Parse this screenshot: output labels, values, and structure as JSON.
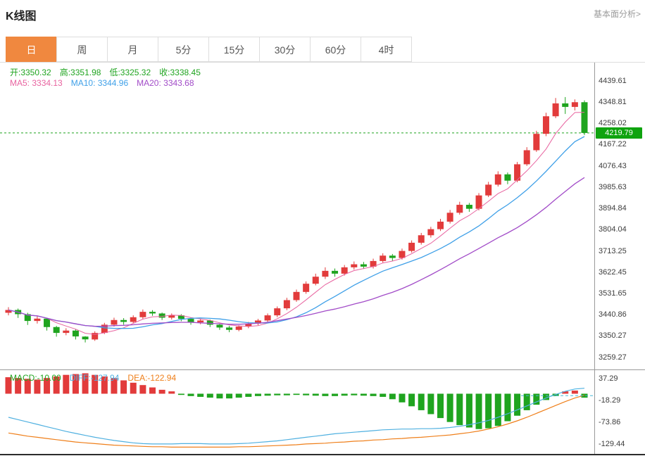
{
  "header": {
    "title": "K线图",
    "analysis_link": "基本面分析>"
  },
  "tabs": {
    "items": [
      "日",
      "周",
      "月",
      "5分",
      "15分",
      "30分",
      "60分",
      "4时"
    ],
    "active_index": 0,
    "active_color": "#f0883f"
  },
  "info": {
    "ohlc_color": "#1fa41f",
    "ohlc": [
      {
        "name": "open",
        "label": "开:3350.32"
      },
      {
        "name": "high",
        "label": "高:3351.98"
      },
      {
        "name": "low",
        "label": "低:3325.32"
      },
      {
        "name": "close",
        "label": "收:3338.45"
      }
    ],
    "ma": [
      {
        "name": "ma5",
        "label": "MA5: 3334.13",
        "color": "#e864a0"
      },
      {
        "name": "ma10",
        "label": "MA10: 3344.96",
        "color": "#3fa0e8"
      },
      {
        "name": "ma20",
        "label": "MA20: 3343.68",
        "color": "#a24cc8"
      }
    ],
    "macd": [
      {
        "name": "macd",
        "label": "MACD:-10.00",
        "color": "#1fa41f"
      },
      {
        "name": "diff",
        "label": "DIFF:-127.94",
        "color": "#4fb0e0"
      },
      {
        "name": "dea",
        "label": "DEA:-122.94",
        "color": "#ef7f1a"
      }
    ]
  },
  "price_tag": {
    "value": "4219.79",
    "bg": "#0fa30f"
  },
  "axes": {
    "main_ticks": [
      "4439.61",
      "4348.81",
      "4258.02",
      "4167.22",
      "4076.43",
      "3985.63",
      "3894.84",
      "3804.04",
      "3713.25",
      "3622.45",
      "3531.65",
      "3440.86",
      "3350.27",
      "3259.27"
    ],
    "macd_ticks": [
      "37.29",
      "-18.29",
      "-73.86",
      "-129.44"
    ]
  },
  "chart_data": {
    "type": "candlestick",
    "title": "K线图 (日)",
    "price_domain": [
      3210,
      4520
    ],
    "macd_domain": [
      -155,
      60
    ],
    "current_price": 4219.79,
    "ohlc_display": {
      "open": 3350.32,
      "high": 3351.98,
      "low": 3325.32,
      "close": 3338.45
    },
    "ma_display": {
      "ma5": 3334.13,
      "ma10": 3344.96,
      "ma20": 3343.68
    },
    "macd_display": {
      "macd": -10.0,
      "diff": -127.94,
      "dea": -122.94
    },
    "overlays": {
      "ma_windows": [
        5,
        10,
        20
      ]
    },
    "colors": {
      "up": "#e23b3b",
      "down": "#1fa41f",
      "ma5": "#e864a0",
      "ma10": "#3fa0e8",
      "ma20": "#a24cc8",
      "diff": "#4fb0e0",
      "dea": "#ef7f1a",
      "current_line": "#1fa41f",
      "macd_ref_line": "#49b8d8"
    },
    "candles": [
      [
        3452,
        3476,
        3441,
        3464
      ],
      [
        3464,
        3470,
        3430,
        3446
      ],
      [
        3446,
        3452,
        3400,
        3417
      ],
      [
        3417,
        3437,
        3406,
        3427
      ],
      [
        3427,
        3430,
        3376,
        3391
      ],
      [
        3391,
        3396,
        3350,
        3366
      ],
      [
        3366,
        3386,
        3356,
        3376
      ],
      [
        3376,
        3381,
        3338,
        3351
      ],
      [
        3350.32,
        3351.98,
        3325.32,
        3338.45
      ],
      [
        3338,
        3373,
        3332,
        3366
      ],
      [
        3366,
        3409,
        3361,
        3401
      ],
      [
        3401,
        3431,
        3393,
        3421
      ],
      [
        3421,
        3429,
        3401,
        3413
      ],
      [
        3413,
        3441,
        3406,
        3433
      ],
      [
        3433,
        3466,
        3426,
        3456
      ],
      [
        3456,
        3463,
        3439,
        3449
      ],
      [
        3449,
        3453,
        3421,
        3431
      ],
      [
        3431,
        3449,
        3423,
        3441
      ],
      [
        3441,
        3446,
        3416,
        3426
      ],
      [
        3426,
        3431,
        3401,
        3411
      ],
      [
        3411,
        3426,
        3403,
        3419
      ],
      [
        3419,
        3423,
        3391,
        3401
      ],
      [
        3401,
        3406,
        3379,
        3389
      ],
      [
        3389,
        3396,
        3369,
        3379
      ],
      [
        3379,
        3399,
        3373,
        3393
      ],
      [
        3393,
        3413,
        3386,
        3406
      ],
      [
        3406,
        3426,
        3399,
        3419
      ],
      [
        3419,
        3449,
        3411,
        3441
      ],
      [
        3441,
        3479,
        3433,
        3471
      ],
      [
        3471,
        3516,
        3463,
        3506
      ],
      [
        3506,
        3551,
        3499,
        3541
      ],
      [
        3541,
        3586,
        3533,
        3576
      ],
      [
        3576,
        3619,
        3569,
        3606
      ],
      [
        3606,
        3646,
        3596,
        3631
      ],
      [
        3631,
        3641,
        3606,
        3619
      ],
      [
        3619,
        3656,
        3611,
        3646
      ],
      [
        3646,
        3671,
        3636,
        3659
      ],
      [
        3659,
        3669,
        3639,
        3649
      ],
      [
        3649,
        3683,
        3641,
        3673
      ],
      [
        3673,
        3706,
        3666,
        3696
      ],
      [
        3696,
        3703,
        3673,
        3686
      ],
      [
        3686,
        3726,
        3679,
        3716
      ],
      [
        3716,
        3761,
        3709,
        3751
      ],
      [
        3751,
        3793,
        3743,
        3783
      ],
      [
        3783,
        3819,
        3773,
        3809
      ],
      [
        3809,
        3853,
        3801,
        3841
      ],
      [
        3841,
        3891,
        3833,
        3879
      ],
      [
        3879,
        3926,
        3871,
        3913
      ],
      [
        3913,
        3921,
        3883,
        3896
      ],
      [
        3896,
        3963,
        3889,
        3953
      ],
      [
        3953,
        4011,
        3946,
        3999
      ],
      [
        3999,
        4056,
        3991,
        4043
      ],
      [
        4043,
        4051,
        4001,
        4016
      ],
      [
        4016,
        4096,
        4009,
        4086
      ],
      [
        4086,
        4159,
        4079,
        4146
      ],
      [
        4146,
        4229,
        4139,
        4216
      ],
      [
        4216,
        4306,
        4206,
        4291
      ],
      [
        4291,
        4369,
        4283,
        4346
      ],
      [
        4346,
        4373,
        4301,
        4331
      ],
      [
        4331,
        4363,
        4316,
        4351
      ],
      [
        4351,
        4359,
        4211,
        4219.79
      ]
    ],
    "macd": {
      "hist": [
        42,
        40,
        38,
        36,
        40,
        44,
        48,
        50,
        52,
        48,
        44,
        40,
        34,
        28,
        22,
        16,
        10,
        6,
        -3,
        -6,
        -8,
        -10,
        -12,
        -12,
        -10,
        -8,
        -6,
        -5,
        -4,
        -4,
        -3,
        -4,
        -5,
        -6,
        -6,
        -5,
        -4,
        -5,
        -6,
        -8,
        -14,
        -22,
        -32,
        -42,
        -52,
        -62,
        -72,
        -80,
        -86,
        -90,
        -88,
        -82,
        -70,
        -56,
        -42,
        -28,
        -16,
        -6,
        6,
        8,
        -10
      ],
      "diff": [
        -60,
        -66,
        -72,
        -78,
        -84,
        -90,
        -96,
        -101,
        -106,
        -111,
        -115,
        -119,
        -122,
        -125,
        -127,
        -128,
        -128,
        -128,
        -127,
        -127,
        -127,
        -128,
        -128,
        -128,
        -127,
        -126,
        -124,
        -122,
        -120,
        -117,
        -114,
        -111,
        -108,
        -105,
        -102,
        -100,
        -98,
        -96,
        -94,
        -92,
        -91,
        -90,
        -90,
        -89,
        -89,
        -88,
        -86,
        -83,
        -79,
        -74,
        -68,
        -60,
        -51,
        -41,
        -31,
        -21,
        -11,
        -2,
        6,
        12,
        14
      ],
      "dea": [
        -100,
        -104,
        -108,
        -111,
        -114,
        -117,
        -120,
        -123,
        -125,
        -127,
        -129,
        -131,
        -132,
        -133,
        -134,
        -135,
        -135,
        -136,
        -136,
        -136,
        -136,
        -136,
        -136,
        -136,
        -135,
        -135,
        -134,
        -133,
        -132,
        -131,
        -130,
        -128,
        -127,
        -126,
        -124,
        -123,
        -121,
        -120,
        -118,
        -117,
        -115,
        -114,
        -112,
        -111,
        -109,
        -107,
        -105,
        -102,
        -99,
        -95,
        -90,
        -84,
        -77,
        -69,
        -60,
        -50,
        -40,
        -30,
        -20,
        -11,
        -4
      ]
    }
  }
}
